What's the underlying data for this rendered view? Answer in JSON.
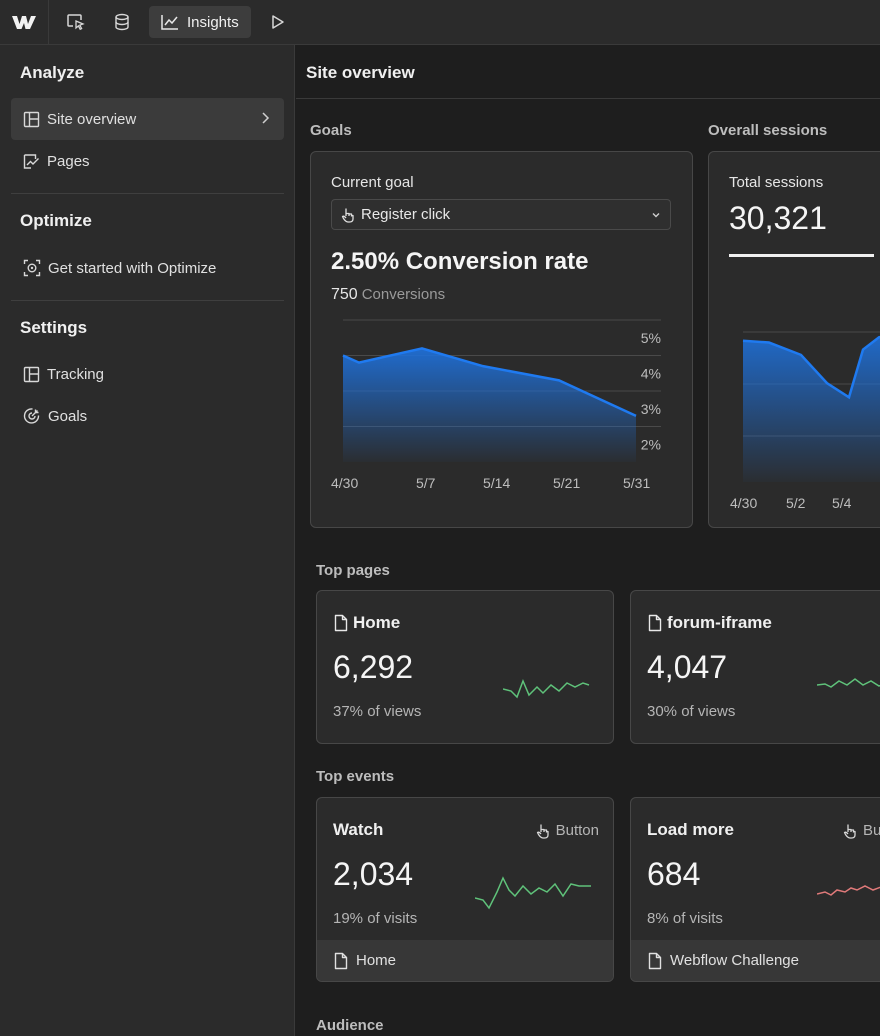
{
  "topbar": {
    "active_tab": "Insights"
  },
  "sidebar": {
    "analyze": {
      "heading": "Analyze",
      "items": [
        {
          "label": "Site overview",
          "icon": "layout-icon"
        },
        {
          "label": "Pages",
          "icon": "pages-chart-icon"
        }
      ]
    },
    "optimize": {
      "heading": "Optimize",
      "items": [
        {
          "label": "Get started with Optimize",
          "icon": "target-frame-icon"
        }
      ]
    },
    "settings": {
      "heading": "Settings",
      "items": [
        {
          "label": "Tracking",
          "icon": "layout-icon"
        },
        {
          "label": "Goals",
          "icon": "goal-target-icon"
        }
      ]
    }
  },
  "main": {
    "title": "Site overview",
    "goals": {
      "section": "Goals",
      "current_goal_label": "Current goal",
      "selected_goal": "Register click",
      "rate_text": "2.50% Conversion rate",
      "conversions_value": "750",
      "conversions_label": "Conversions"
    },
    "sessions": {
      "section": "Overall sessions",
      "label": "Total sessions",
      "value": "30,321"
    },
    "top_pages": {
      "section": "Top pages",
      "items": [
        {
          "title": "Home",
          "value": "6,292",
          "sub": "37% of views"
        },
        {
          "title": "forum-iframe",
          "value": "4,047",
          "sub": "30% of views"
        }
      ]
    },
    "top_events": {
      "section": "Top events",
      "items": [
        {
          "title": "Watch",
          "type": "Button",
          "value": "2,034",
          "sub": "19% of visits",
          "page": "Home"
        },
        {
          "title": "Load more",
          "type": "Button",
          "value": "684",
          "sub": "8% of visits",
          "page": "Webflow Challenge"
        }
      ]
    },
    "audience": {
      "section": "Audience"
    }
  },
  "colors": {
    "chart_fill": "#1f6fd6",
    "spark_green": "#5fc27a",
    "spark_red": "#e07a7a"
  },
  "chart_data": [
    {
      "type": "area",
      "x_ticks": [
        "4/30",
        "5/7",
        "5/14",
        "5/21",
        "5/31"
      ],
      "y_ticks": [
        "5%",
        "4%",
        "3%",
        "2%"
      ],
      "ylim": [
        1.5,
        5.5
      ],
      "x": [
        "4/30",
        "5/2",
        "5/7",
        "5/14",
        "5/21",
        "5/31"
      ],
      "values": [
        4.5,
        4.3,
        4.7,
        4.2,
        3.8,
        2.8
      ],
      "grid": true
    },
    {
      "type": "area",
      "x_ticks": [
        "4/30",
        "5/2",
        "5/4"
      ],
      "values": [
        0.8,
        0.79,
        0.72,
        0.56,
        0.48,
        0.75,
        0.82
      ],
      "grid": true
    }
  ]
}
